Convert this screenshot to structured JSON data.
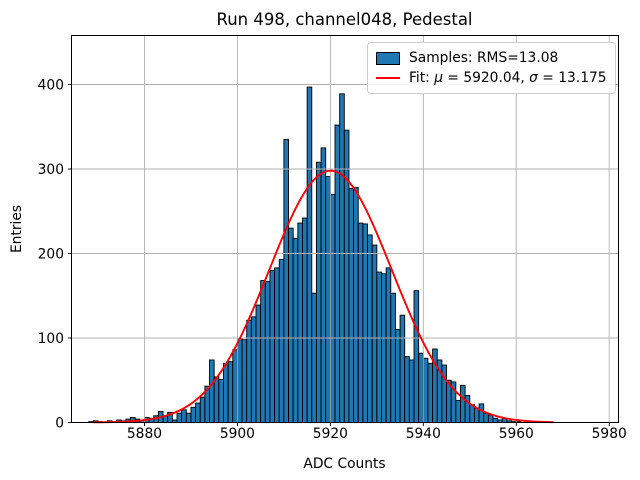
{
  "title": "Run 498, channel048, Pedestal",
  "colors": {
    "bar_fill": "#1f77b4",
    "bar_edge": "#000000",
    "fit_line": "#ff0000",
    "grid": "#b0b0b0",
    "axis": "#000000",
    "background": "#ffffff",
    "legend_border": "#cccccc"
  },
  "chart_data": {
    "type": "bar",
    "subtype": "histogram",
    "title": "Run 498, channel048, Pedestal",
    "xlabel": "ADC Counts",
    "ylabel": "Entries",
    "xlim": [
      5864.3,
      5982.0
    ],
    "ylim": [
      0,
      458
    ],
    "xticks": [
      5880,
      5900,
      5920,
      5940,
      5960,
      5980
    ],
    "yticks": [
      0,
      100,
      200,
      300,
      400
    ],
    "grid": true,
    "legend_position": "upper right",
    "histogram": {
      "bin_start": 5868,
      "bin_width": 1,
      "counts": [
        1,
        2,
        1,
        0,
        2,
        1,
        3,
        2,
        4,
        6,
        4,
        3,
        6,
        5,
        8,
        13,
        8,
        12,
        3,
        11,
        15,
        11,
        18,
        23,
        30,
        43,
        74,
        54,
        51,
        70,
        72,
        86,
        100,
        98,
        121,
        125,
        139,
        168,
        167,
        180,
        183,
        193,
        335,
        230,
        218,
        236,
        242,
        397,
        153,
        308,
        325,
        291,
        270,
        352,
        389,
        346,
        277,
        278,
        236,
        235,
        222,
        210,
        178,
        176,
        183,
        153,
        110,
        127,
        78,
        74,
        156,
        82,
        76,
        70,
        87,
        74,
        68,
        50,
        48,
        26,
        44,
        32,
        21,
        17,
        22,
        11,
        9,
        5,
        3,
        5,
        2,
        1,
        1
      ]
    },
    "fit": {
      "type": "gaussian",
      "mu": 5920.04,
      "sigma": 13.175,
      "amplitude": 298,
      "x_start": 5869,
      "x_end": 5968
    },
    "legend": [
      {
        "swatch": "patch",
        "segments": [
          {
            "text": "Samples: RMS=13.08",
            "italic": false
          }
        ]
      },
      {
        "swatch": "line",
        "segments": [
          {
            "text": "Fit: ",
            "italic": false
          },
          {
            "text": "μ",
            "italic": true
          },
          {
            "text": " = 5920.04, ",
            "italic": false
          },
          {
            "text": "σ",
            "italic": true
          },
          {
            "text": " = 13.175",
            "italic": false
          }
        ]
      }
    ]
  }
}
